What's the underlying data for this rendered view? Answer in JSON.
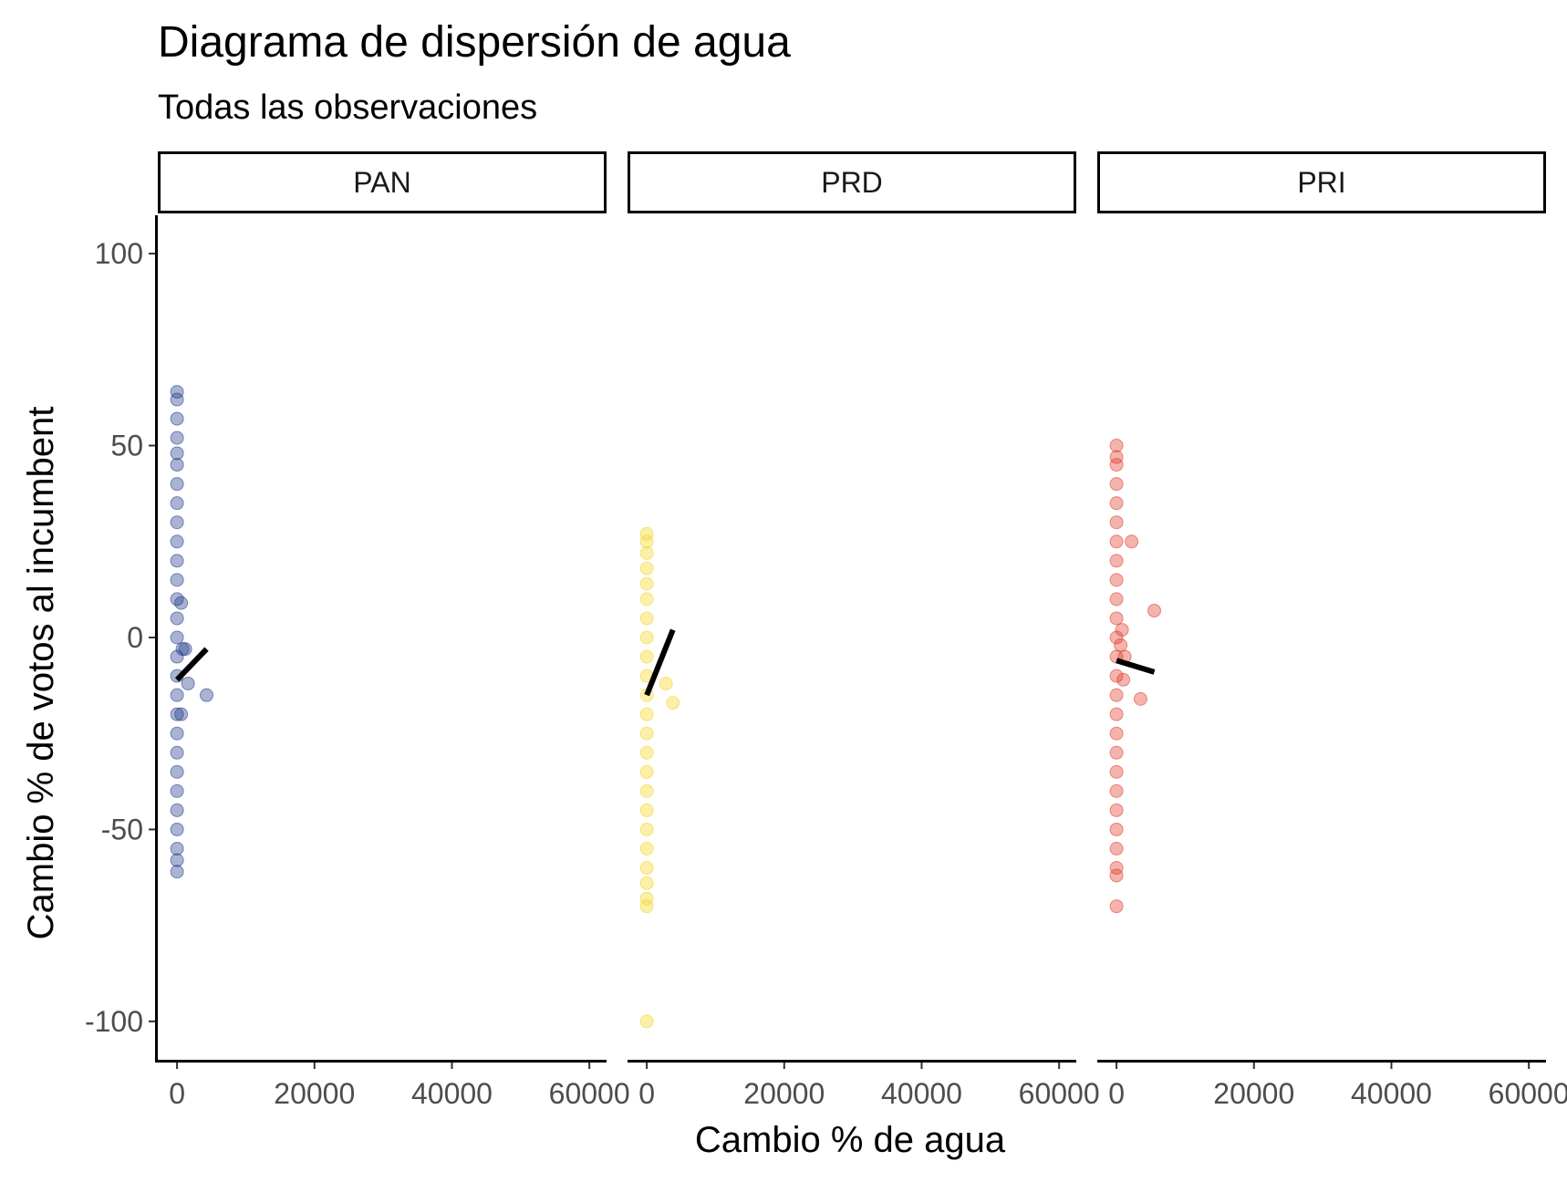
{
  "chart_data": {
    "type": "scatter",
    "title": "Diagrama de dispersión de agua",
    "subtitle": "Todas las observaciones",
    "xlabel": "Cambio % de agua",
    "ylabel": "Cambio % de votos al incumbent",
    "xlim": [
      -2800,
      62500
    ],
    "ylim": [
      -110,
      110
    ],
    "x_ticks": [
      0,
      20000,
      40000,
      60000
    ],
    "x_tick_labels": [
      "0",
      "20000",
      "40000",
      "60000"
    ],
    "y_ticks": [
      100,
      50,
      0,
      -50,
      -100
    ],
    "y_tick_labels": [
      "100",
      "50",
      "0",
      "-50",
      "-100"
    ],
    "grid": false,
    "legend": "none",
    "facets": [
      {
        "name": "PAN",
        "color": "#1f3a8a",
        "points": [
          {
            "x": 0,
            "y": 64
          },
          {
            "x": 0,
            "y": 62
          },
          {
            "x": 0,
            "y": 57
          },
          {
            "x": 0,
            "y": 52
          },
          {
            "x": 0,
            "y": 48
          },
          {
            "x": 0,
            "y": 45
          },
          {
            "x": 0,
            "y": 40
          },
          {
            "x": 0,
            "y": 35
          },
          {
            "x": 0,
            "y": 30
          },
          {
            "x": 0,
            "y": 25
          },
          {
            "x": 0,
            "y": 20
          },
          {
            "x": 0,
            "y": 15
          },
          {
            "x": 0,
            "y": 10
          },
          {
            "x": 0,
            "y": 5
          },
          {
            "x": 0,
            "y": 0
          },
          {
            "x": 0,
            "y": -5
          },
          {
            "x": 0,
            "y": -10
          },
          {
            "x": 0,
            "y": -15
          },
          {
            "x": 0,
            "y": -20
          },
          {
            "x": 0,
            "y": -25
          },
          {
            "x": 0,
            "y": -30
          },
          {
            "x": 0,
            "y": -35
          },
          {
            "x": 0,
            "y": -40
          },
          {
            "x": 0,
            "y": -45
          },
          {
            "x": 0,
            "y": -50
          },
          {
            "x": 0,
            "y": -55
          },
          {
            "x": 0,
            "y": -58
          },
          {
            "x": 0,
            "y": -61
          },
          {
            "x": 600,
            "y": 9
          },
          {
            "x": 800,
            "y": -3
          },
          {
            "x": 1200,
            "y": -3
          },
          {
            "x": 600,
            "y": -20
          },
          {
            "x": 1600,
            "y": -12
          },
          {
            "x": 4300,
            "y": -15
          }
        ],
        "trend": {
          "x": [
            0,
            4300
          ],
          "y": [
            -11,
            -3
          ]
        }
      },
      {
        "name": "PRD",
        "color": "#f5d41f",
        "points": [
          {
            "x": 0,
            "y": 27
          },
          {
            "x": 0,
            "y": 25
          },
          {
            "x": 0,
            "y": 22
          },
          {
            "x": 0,
            "y": 18
          },
          {
            "x": 0,
            "y": 14
          },
          {
            "x": 0,
            "y": 10
          },
          {
            "x": 0,
            "y": 5
          },
          {
            "x": 0,
            "y": 0
          },
          {
            "x": 0,
            "y": -5
          },
          {
            "x": 0,
            "y": -10
          },
          {
            "x": 0,
            "y": -15
          },
          {
            "x": 0,
            "y": -20
          },
          {
            "x": 0,
            "y": -25
          },
          {
            "x": 0,
            "y": -30
          },
          {
            "x": 0,
            "y": -35
          },
          {
            "x": 0,
            "y": -40
          },
          {
            "x": 0,
            "y": -45
          },
          {
            "x": 0,
            "y": -50
          },
          {
            "x": 0,
            "y": -55
          },
          {
            "x": 0,
            "y": -60
          },
          {
            "x": 0,
            "y": -64
          },
          {
            "x": 0,
            "y": -68
          },
          {
            "x": 0,
            "y": -70
          },
          {
            "x": 0,
            "y": -100
          },
          {
            "x": 2800,
            "y": -12
          },
          {
            "x": 3800,
            "y": -17
          }
        ],
        "trend": {
          "x": [
            0,
            3800
          ],
          "y": [
            -15,
            2
          ]
        }
      },
      {
        "name": "PRI",
        "color": "#e0392b",
        "points": [
          {
            "x": 0,
            "y": 50
          },
          {
            "x": 0,
            "y": 47
          },
          {
            "x": 0,
            "y": 45
          },
          {
            "x": 0,
            "y": 40
          },
          {
            "x": 0,
            "y": 35
          },
          {
            "x": 0,
            "y": 30
          },
          {
            "x": 0,
            "y": 25
          },
          {
            "x": 0,
            "y": 20
          },
          {
            "x": 0,
            "y": 15
          },
          {
            "x": 0,
            "y": 10
          },
          {
            "x": 0,
            "y": 5
          },
          {
            "x": 0,
            "y": 0
          },
          {
            "x": 0,
            "y": -5
          },
          {
            "x": 0,
            "y": -10
          },
          {
            "x": 0,
            "y": -15
          },
          {
            "x": 0,
            "y": -20
          },
          {
            "x": 0,
            "y": -25
          },
          {
            "x": 0,
            "y": -30
          },
          {
            "x": 0,
            "y": -35
          },
          {
            "x": 0,
            "y": -40
          },
          {
            "x": 0,
            "y": -45
          },
          {
            "x": 0,
            "y": -50
          },
          {
            "x": 0,
            "y": -55
          },
          {
            "x": 0,
            "y": -60
          },
          {
            "x": 0,
            "y": -62
          },
          {
            "x": 0,
            "y": -70
          },
          {
            "x": 600,
            "y": -2
          },
          {
            "x": 1200,
            "y": -5
          },
          {
            "x": 1000,
            "y": -11
          },
          {
            "x": 800,
            "y": 2
          },
          {
            "x": 2200,
            "y": 25
          },
          {
            "x": 5500,
            "y": 7
          },
          {
            "x": 3500,
            "y": -16
          }
        ],
        "trend": {
          "x": [
            0,
            5500
          ],
          "y": [
            -6,
            -9
          ]
        }
      }
    ]
  }
}
